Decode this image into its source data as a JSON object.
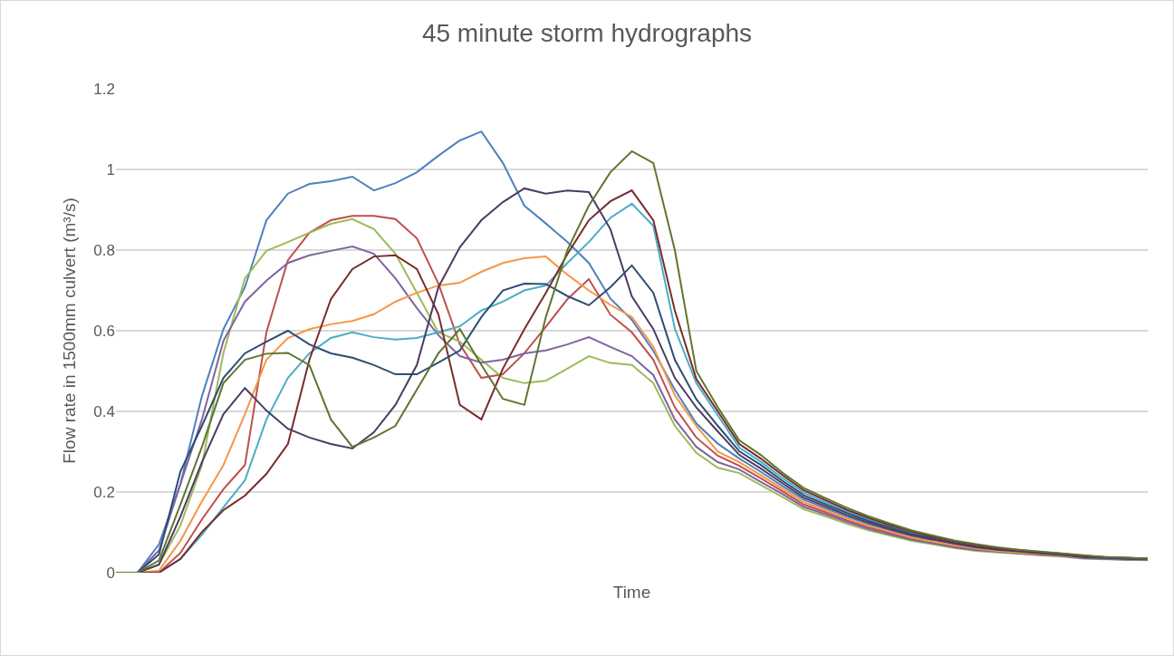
{
  "chart_data": {
    "type": "line",
    "title": "45 minute storm hydrographs",
    "xlabel": "Time",
    "ylabel": "Flow rate in 1500mm culvert (m³/s)",
    "categories": [
      null,
      null,
      null,
      null,
      null,
      null,
      null,
      null,
      null,
      null,
      null,
      null,
      null,
      null,
      null,
      null,
      null,
      null,
      null,
      null,
      null,
      null,
      null,
      null,
      null,
      null,
      null,
      null,
      null,
      null,
      null,
      null,
      null,
      null,
      null,
      null,
      null,
      null,
      null,
      null,
      null,
      null,
      null,
      null,
      null,
      null,
      null,
      null,
      null
    ],
    "ylim": [
      0,
      1.2
    ],
    "yticks": [
      0,
      0.2,
      0.4,
      0.6,
      0.8,
      1,
      1.2
    ],
    "grid": "y",
    "tick_labels": "y",
    "line_style": "solid",
    "series": [
      {
        "color": "#4f81bd",
        "values": [
          0,
          0,
          0.07,
          0.22,
          0.438,
          0.604,
          0.708,
          0.874,
          0.94,
          0.964,
          0.971,
          0.982,
          0.948,
          0.966,
          0.993,
          1.034,
          1.072,
          1.094,
          1.016,
          0.91,
          0.866,
          0.82,
          0.768,
          0.68,
          0.627,
          0.55,
          0.454,
          0.37,
          0.32,
          0.283,
          0.25,
          0.215,
          0.181,
          0.16,
          0.139,
          0.12,
          0.105,
          0.09,
          0.08,
          null,
          null,
          null,
          null,
          null,
          null,
          null,
          null,
          null,
          null
        ]
      },
      {
        "color": "#c0504d",
        "values": [
          0,
          0,
          0,
          0.049,
          0.132,
          0.207,
          0.267,
          0.596,
          0.775,
          0.843,
          0.874,
          0.885,
          0.885,
          0.877,
          0.829,
          0.717,
          0.566,
          0.483,
          0.492,
          0.544,
          0.61,
          0.678,
          0.728,
          0.64,
          0.596,
          0.528,
          0.41,
          0.335,
          0.29,
          0.265,
          0.234,
          0.202,
          0.169,
          0.15,
          0.13,
          0.113,
          0.099,
          0.085,
          0.075,
          0.066,
          0.058,
          0.053,
          0.049,
          0.045,
          0.041,
          0.037,
          0.035,
          null,
          null
        ]
      },
      {
        "color": "#9bbb59",
        "values": [
          0,
          0,
          0.02,
          0.117,
          0.267,
          0.545,
          0.73,
          0.798,
          0.82,
          0.843,
          0.865,
          0.877,
          0.852,
          0.791,
          0.694,
          0.596,
          0.573,
          0.528,
          0.483,
          0.47,
          0.476,
          0.506,
          0.537,
          0.52,
          0.515,
          0.47,
          0.364,
          0.297,
          0.26,
          0.247,
          0.217,
          0.188,
          0.157,
          0.14,
          0.121,
          0.105,
          0.092,
          0.079,
          0.07,
          0.061,
          0.054,
          0.05,
          0.047,
          0.043,
          0.04,
          0.035,
          0.033,
          0.032,
          0.031
        ]
      },
      {
        "color": "#8064a2",
        "values": [
          0,
          0,
          0.055,
          0.22,
          0.38,
          0.575,
          0.672,
          0.724,
          0.768,
          0.787,
          0.798,
          0.809,
          0.791,
          0.73,
          0.656,
          0.589,
          0.537,
          0.521,
          0.528,
          0.544,
          0.551,
          0.566,
          0.584,
          0.56,
          0.537,
          0.49,
          0.38,
          0.312,
          0.274,
          0.256,
          0.225,
          0.195,
          0.163,
          0.145,
          0.126,
          0.109,
          0.095,
          0.082,
          0.073,
          0.063,
          0.056,
          0.052,
          0.048,
          0.044,
          0.041,
          0.036,
          0.034,
          0.032,
          0.032
        ]
      },
      {
        "color": "#4bacc6",
        "values": [
          null,
          null,
          0,
          0.034,
          0.094,
          0.162,
          0.229,
          0.38,
          0.483,
          0.544,
          0.582,
          0.596,
          0.584,
          0.578,
          0.582,
          0.596,
          0.611,
          0.65,
          0.672,
          0.7,
          0.712,
          0.768,
          0.82,
          0.88,
          0.915,
          0.86,
          0.605,
          0.47,
          0.39,
          0.31,
          0.275,
          0.235,
          0.198,
          0.175,
          0.152,
          0.132,
          0.115,
          0.099,
          0.087,
          null,
          null,
          null,
          null,
          null,
          null,
          null,
          null,
          null,
          null
        ]
      },
      {
        "color": "#f79646",
        "values": [
          0,
          0,
          0.005,
          0.079,
          0.177,
          0.267,
          0.393,
          0.528,
          0.582,
          0.604,
          0.616,
          0.624,
          0.641,
          0.672,
          0.694,
          0.712,
          0.719,
          0.746,
          0.768,
          0.78,
          0.784,
          0.739,
          0.7,
          0.664,
          0.634,
          0.56,
          0.44,
          0.364,
          0.3,
          0.274,
          0.242,
          0.208,
          0.175,
          0.155,
          0.134,
          0.116,
          0.102,
          0.087,
          0.077,
          0.068,
          0.06,
          0.054,
          0.05,
          0.046,
          0.042,
          0.038,
          null,
          null,
          null
        ]
      },
      {
        "color": "#2c4d75",
        "values": [
          0,
          0,
          0.045,
          0.251,
          0.364,
          0.483,
          0.544,
          0.573,
          0.6,
          0.566,
          0.544,
          0.533,
          0.515,
          0.492,
          0.492,
          0.521,
          0.551,
          0.634,
          0.7,
          0.717,
          0.716,
          0.686,
          0.663,
          0.708,
          0.762,
          0.694,
          0.528,
          0.43,
          0.364,
          0.301,
          0.267,
          0.228,
          0.192,
          0.17,
          0.148,
          0.128,
          0.112,
          0.096,
          0.085,
          0.074,
          0.065,
          0.059,
          0.054,
          0.049,
          0.045,
          0.04,
          0.037,
          0.035,
          0.034
        ]
      },
      {
        "color": "#772c2a",
        "values": [
          0,
          0,
          0,
          0.034,
          0.101,
          0.155,
          0.191,
          0.245,
          0.319,
          0.528,
          0.678,
          0.753,
          0.784,
          0.787,
          0.753,
          0.641,
          0.416,
          0.38,
          0.506,
          0.604,
          0.694,
          0.79,
          0.874,
          0.921,
          0.948,
          0.874,
          0.65,
          0.48,
          0.4,
          0.319,
          0.283,
          0.242,
          0.204,
          0.18,
          0.156,
          0.136,
          0.118,
          0.102,
          0.089,
          0.078,
          0.069,
          0.061,
          0.056,
          0.051,
          0.047,
          0.042,
          0.039,
          0.037,
          0.035
        ]
      },
      {
        "color": "#4d3b62",
        "values": [
          0,
          0,
          0.02,
          0.139,
          0.274,
          0.393,
          0.458,
          0.402,
          0.357,
          0.335,
          0.319,
          0.308,
          0.348,
          0.416,
          0.515,
          0.708,
          0.807,
          0.874,
          0.919,
          0.953,
          0.94,
          0.948,
          0.944,
          0.852,
          0.685,
          0.604,
          0.483,
          0.41,
          0.35,
          0.292,
          0.258,
          0.222,
          0.186,
          0.165,
          0.143,
          0.124,
          0.108,
          0.093,
          0.082,
          0.072,
          0.063,
          0.057,
          0.053,
          0.048,
          0.044,
          0.039,
          0.037,
          0.035,
          0.033
        ]
      },
      {
        "color": "#5f7530",
        "values": [
          0,
          0,
          0.03,
          0.169,
          0.312,
          0.47,
          0.528,
          0.543,
          0.545,
          0.515,
          0.38,
          0.312,
          0.335,
          0.364,
          0.454,
          0.544,
          0.604,
          0.515,
          0.431,
          0.416,
          0.634,
          0.8,
          0.91,
          0.993,
          1.045,
          1.016,
          0.8,
          0.5,
          0.41,
          0.328,
          0.292,
          0.248,
          0.21,
          0.185,
          0.161,
          0.14,
          0.122,
          0.105,
          0.092,
          0.08,
          0.071,
          0.063,
          0.057,
          0.052,
          0.048,
          0.043,
          0.039,
          0.037,
          0.035
        ]
      }
    ]
  }
}
